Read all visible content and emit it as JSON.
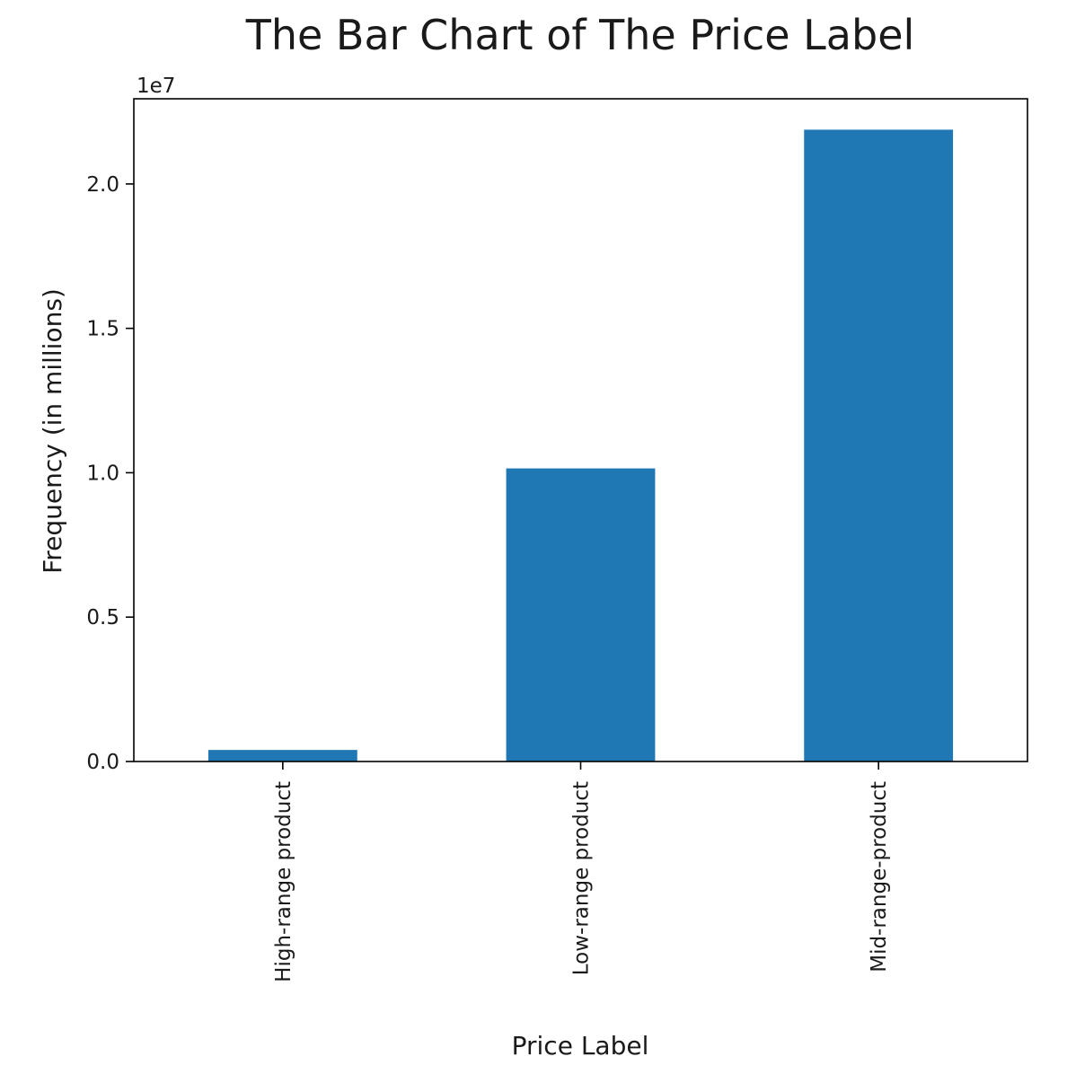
{
  "chart_data": {
    "type": "bar",
    "title": "The Bar Chart of The Price Label",
    "xlabel": "Price Label",
    "ylabel": "Frequency (in millions)",
    "offset_text": "1e7",
    "categories": [
      "High-range product",
      "Low-range product",
      "Mid-range-product"
    ],
    "values": [
      400000,
      10150000,
      21880000
    ],
    "ylim": [
      0,
      22950000
    ],
    "yticks": [
      0,
      5000000,
      10000000,
      15000000,
      20000000
    ],
    "ytick_labels": [
      "0.0",
      "0.5",
      "1.0",
      "1.5",
      "2.0"
    ],
    "bar_color": "#1f77b4",
    "grid": false,
    "legend": "none"
  }
}
